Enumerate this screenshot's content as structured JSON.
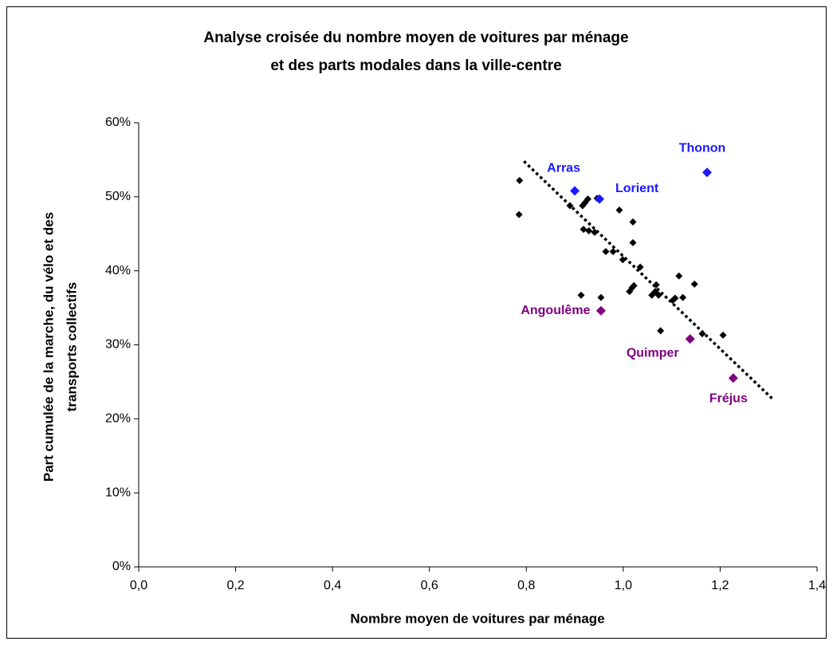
{
  "chart_data": {
    "type": "scatter",
    "title": [
      "Analyse croisée du nombre moyen de voitures par ménage",
      "et des parts modales dans la ville-centre"
    ],
    "x_label": "Nombre moyen de voitures par ménage",
    "y_label": [
      "Part cumulée de la marche, du vélo et des",
      "transports collectifs"
    ],
    "xlim": [
      0,
      1.4
    ],
    "xticks": [
      {
        "value": 0,
        "label": "0,0"
      },
      {
        "value": 0.2,
        "label": "0,2"
      },
      {
        "value": 0.4,
        "label": "0,4"
      },
      {
        "value": 0.6,
        "label": "0,6"
      },
      {
        "value": 0.8,
        "label": "0,8"
      },
      {
        "value": 1.0,
        "label": "1,0"
      },
      {
        "value": 1.2,
        "label": "1,2"
      },
      {
        "value": 1.4,
        "label": "1,4"
      }
    ],
    "ylim": [
      0,
      60
    ],
    "yticks": [
      {
        "value": 0,
        "label": "0%"
      },
      {
        "value": 10,
        "label": "10%"
      },
      {
        "value": 20,
        "label": "20%"
      },
      {
        "value": 30,
        "label": "30%"
      },
      {
        "value": 40,
        "label": "40%"
      },
      {
        "value": 50,
        "label": "50%"
      },
      {
        "value": 60,
        "label": "60%"
      }
    ],
    "series": [
      {
        "color": "#000000",
        "x": [
          0.786,
          0.785,
          0.89,
          0.916,
          0.921,
          0.927,
          0.918,
          0.929,
          0.941,
          0.946,
          0.992,
          1.02,
          1.02,
          0.964,
          0.979,
          0.999,
          1.022,
          1.018,
          1.013,
          1.035,
          1.068,
          1.066,
          1.059,
          1.073,
          1.107,
          1.102,
          1.123,
          1.115,
          1.147,
          1.163,
          1.206,
          1.077,
          0.913,
          0.954
        ],
        "y": [
          52.2,
          47.6,
          48.8,
          48.8,
          49.2,
          49.7,
          45.6,
          45.4,
          45.2,
          49.8,
          48.2,
          46.6,
          43.8,
          42.6,
          42.6,
          41.5,
          38.0,
          37.7,
          37.2,
          40.5,
          38.1,
          37.2,
          36.7,
          36.7,
          36.3,
          36.0,
          36.4,
          39.3,
          38.2,
          31.5,
          31.3,
          31.9,
          36.7,
          36.4
        ]
      },
      {
        "color": "#1a1aff",
        "labels": [
          "Arras",
          "Lorient",
          "Thonon"
        ],
        "x": [
          0.9,
          0.951,
          1.173
        ],
        "y": [
          50.8,
          49.7,
          53.3
        ]
      },
      {
        "color": "#800080",
        "labels": [
          "Angoulême",
          "Quimper",
          "Fréjus"
        ],
        "x": [
          0.954,
          1.138,
          1.227
        ],
        "y": [
          34.6,
          30.8,
          25.5
        ]
      }
    ],
    "trendline": {
      "color": "#000000",
      "x": [
        0.795,
        1.308
      ],
      "y": [
        54.8,
        22.7
      ]
    }
  }
}
